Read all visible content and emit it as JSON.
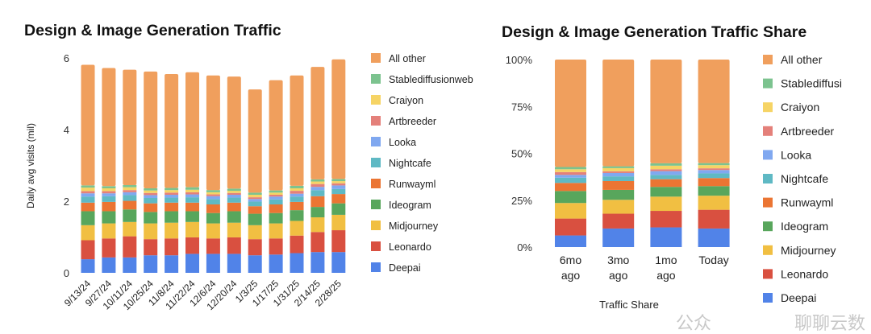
{
  "colors": {
    "Deepai": "#5183e8",
    "Leonardo": "#d95040",
    "Midjourney": "#f1bf42",
    "Ideogram": "#58a65c",
    "Runwayml": "#eb7533",
    "Nightcafe": "#5fb9c4",
    "Looka": "#80a8f0",
    "Artbreeder": "#e4807a",
    "Craiyon": "#f6d465",
    "Stablediffusionweb": "#7cc38f",
    "All other": "#f09f5d"
  },
  "chart_data": [
    {
      "type": "bar",
      "stacked": true,
      "title": "Design & Image Generation Traffic",
      "xlabel": "",
      "ylabel": "Daily avg visits (mil)",
      "ylim": [
        0,
        6
      ],
      "yticks": [
        "0",
        "2",
        "4",
        "6"
      ],
      "grid": false,
      "legend_position": "right",
      "categories": [
        "9/13/24",
        "9/27/24",
        "10/11/24",
        "10/25/24",
        "11/8/24",
        "11/22/24",
        "12/6/24",
        "12/20/24",
        "1/3/25",
        "1/17/25",
        "1/31/25",
        "2/14/25",
        "2/28/25"
      ],
      "series": [
        {
          "name": "Deepai",
          "values": [
            0.38,
            0.43,
            0.43,
            0.49,
            0.49,
            0.53,
            0.53,
            0.53,
            0.49,
            0.51,
            0.55,
            0.58,
            0.58
          ]
        },
        {
          "name": "Leonardo",
          "values": [
            0.53,
            0.53,
            0.59,
            0.45,
            0.47,
            0.46,
            0.43,
            0.46,
            0.45,
            0.45,
            0.49,
            0.56,
            0.61
          ]
        },
        {
          "name": "Midjourney",
          "values": [
            0.42,
            0.42,
            0.4,
            0.44,
            0.44,
            0.43,
            0.42,
            0.41,
            0.39,
            0.42,
            0.41,
            0.41,
            0.43
          ]
        },
        {
          "name": "Ideogram",
          "values": [
            0.39,
            0.34,
            0.35,
            0.32,
            0.32,
            0.3,
            0.29,
            0.32,
            0.32,
            0.29,
            0.3,
            0.29,
            0.32
          ]
        },
        {
          "name": "Runwayml",
          "values": [
            0.24,
            0.26,
            0.24,
            0.24,
            0.24,
            0.24,
            0.24,
            0.24,
            0.21,
            0.24,
            0.23,
            0.3,
            0.26
          ]
        },
        {
          "name": "Nightcafe",
          "values": [
            0.17,
            0.16,
            0.16,
            0.15,
            0.14,
            0.15,
            0.15,
            0.14,
            0.13,
            0.14,
            0.15,
            0.17,
            0.14
          ]
        },
        {
          "name": "Looka",
          "values": [
            0.09,
            0.08,
            0.08,
            0.08,
            0.08,
            0.08,
            0.08,
            0.08,
            0.07,
            0.08,
            0.08,
            0.09,
            0.1
          ]
        },
        {
          "name": "Artbreeder",
          "values": [
            0.06,
            0.06,
            0.06,
            0.06,
            0.06,
            0.06,
            0.05,
            0.05,
            0.05,
            0.05,
            0.08,
            0.08,
            0.06
          ]
        },
        {
          "name": "Craiyon",
          "values": [
            0.1,
            0.08,
            0.08,
            0.07,
            0.07,
            0.07,
            0.06,
            0.06,
            0.07,
            0.06,
            0.07,
            0.07,
            0.06
          ]
        },
        {
          "name": "Stablediffusionweb",
          "values": [
            0.06,
            0.06,
            0.06,
            0.06,
            0.06,
            0.07,
            0.06,
            0.06,
            0.06,
            0.06,
            0.07,
            0.06,
            0.06
          ]
        },
        {
          "name": "All other",
          "values": [
            3.37,
            3.3,
            3.22,
            3.26,
            3.18,
            3.21,
            3.2,
            3.13,
            2.88,
            3.08,
            3.08,
            3.14,
            3.34
          ]
        }
      ],
      "legend": [
        "All other",
        "Stablediffusionweb",
        "Craiyon",
        "Artbreeder",
        "Looka",
        "Nightcafe",
        "Runwayml",
        "Ideogram",
        "Midjourney",
        "Leonardo",
        "Deepai"
      ]
    },
    {
      "type": "bar",
      "stacked": true,
      "percent": true,
      "title": "Design & Image Generation Traffic Share",
      "xlabel": "Traffic Share",
      "ylabel": "",
      "ylim": [
        0,
        100
      ],
      "yticks": [
        "0%",
        "25%",
        "50%",
        "75%",
        "100%"
      ],
      "grid": false,
      "legend_position": "right",
      "categories": [
        [
          "6mo",
          "ago"
        ],
        [
          "3mo",
          "ago"
        ],
        [
          "1mo",
          "ago"
        ],
        [
          "Today"
        ]
      ],
      "series": [
        {
          "name": "Deepai",
          "values": [
            6.2,
            9.9,
            10.5,
            9.9
          ]
        },
        {
          "name": "Leonardo",
          "values": [
            9.0,
            7.9,
            8.8,
            10.0
          ]
        },
        {
          "name": "Midjourney",
          "values": [
            8.3,
            7.4,
            7.6,
            7.5
          ]
        },
        {
          "name": "Ideogram",
          "values": [
            6.4,
            5.3,
            5.2,
            5.1
          ]
        },
        {
          "name": "Runwayml",
          "values": [
            4.3,
            4.7,
            4.1,
            4.3
          ]
        },
        {
          "name": "Nightcafe",
          "values": [
            2.8,
            2.5,
            2.3,
            2.5
          ]
        },
        {
          "name": "Looka",
          "values": [
            1.5,
            1.8,
            2.0,
            1.8
          ]
        },
        {
          "name": "Artbreeder",
          "values": [
            1.5,
            0.9,
            1.0,
            0.9
          ]
        },
        {
          "name": "Craiyon",
          "values": [
            1.5,
            1.7,
            1.9,
            1.7
          ]
        },
        {
          "name": "Stablediffusionweb",
          "values": [
            1.2,
            1.0,
            1.3,
            1.1
          ]
        },
        {
          "name": "All other",
          "values": [
            57.3,
            56.9,
            55.3,
            55.2
          ]
        }
      ],
      "legend": [
        "All other",
        "Stablediffusi",
        "Craiyon",
        "Artbreeder",
        "Looka",
        "Nightcafe",
        "Runwayml",
        "Ideogram",
        "Midjourney",
        "Leonardo",
        "Deepai"
      ],
      "legend_keys": [
        "All other",
        "Stablediffusionweb",
        "Craiyon",
        "Artbreeder",
        "Looka",
        "Nightcafe",
        "Runwayml",
        "Ideogram",
        "Midjourney",
        "Leonardo",
        "Deepai"
      ]
    }
  ],
  "watermark": {
    "text1": "公众",
    "text2": "聊聊云数"
  }
}
